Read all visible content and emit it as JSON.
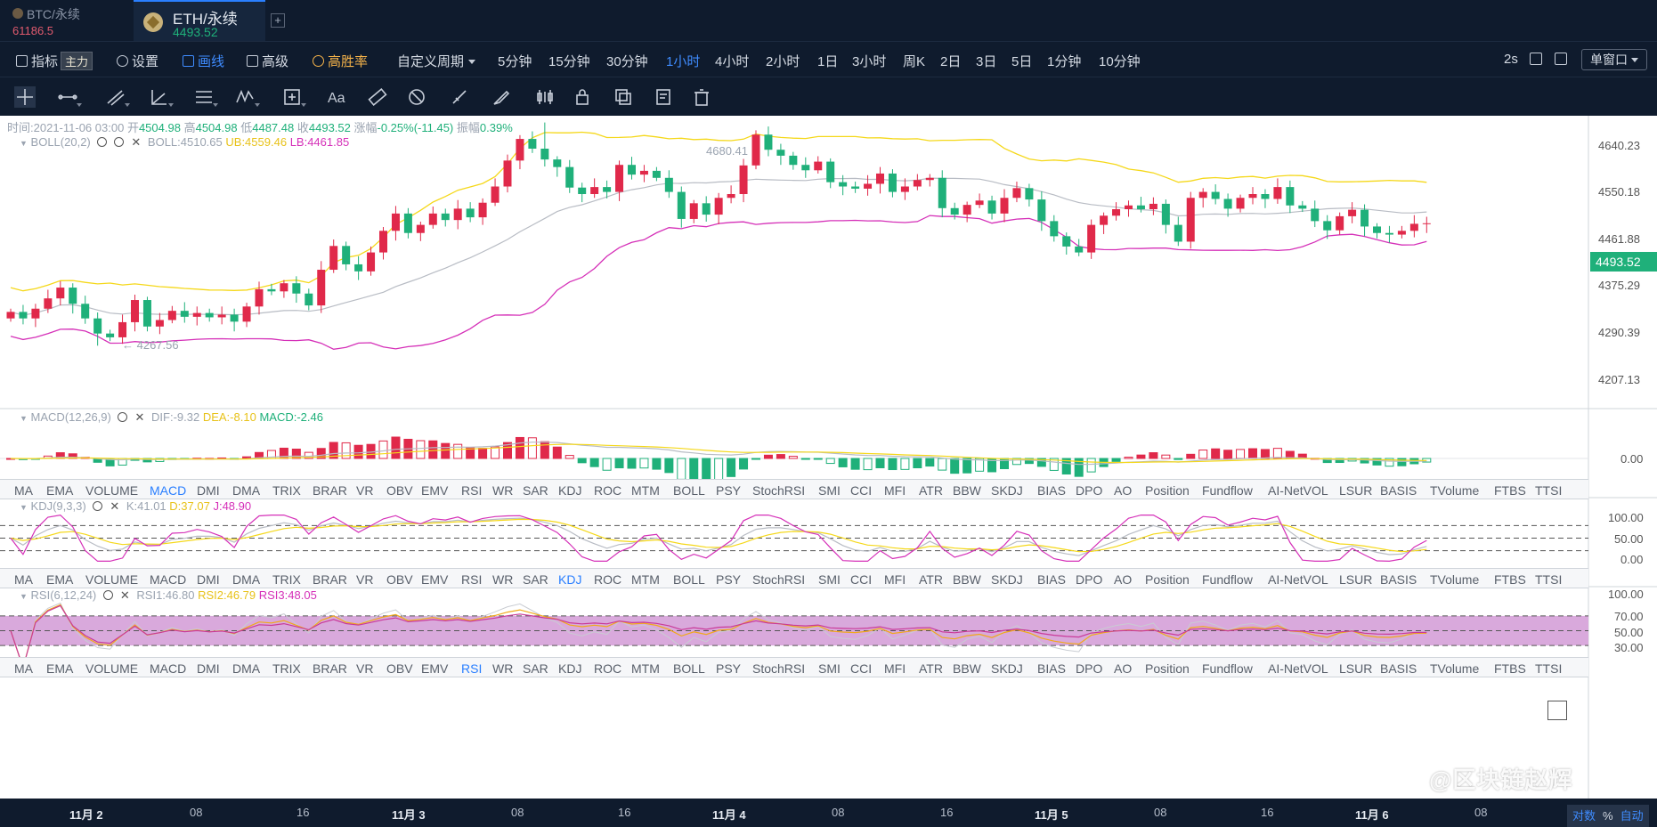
{
  "tabs": [
    {
      "name": "BTC/永续",
      "price": "61186.5"
    },
    {
      "name": "ETH/永续",
      "price": "4493.52"
    }
  ],
  "toolbar": {
    "indicator": "指标",
    "indicator_tag": "主力",
    "settings": "设置",
    "draw": "画线",
    "advanced": "高级",
    "winrate": "高胜率",
    "custom_period": "自定义周期",
    "periods": [
      "5分钟",
      "15分钟",
      "30分钟",
      "1小时",
      "4小时",
      "2小时",
      "1日",
      "3小时",
      "周K",
      "2日",
      "3日",
      "5日",
      "1分钟",
      "10分钟"
    ],
    "active_period": "1小时",
    "refresh": "2s",
    "window_mode": "单窗口"
  },
  "drawtools": [
    "crosshair-icon",
    "horizontal-line-icon",
    "ray-lines-icon",
    "angle-icon",
    "parallel-lines-icon",
    "wave-icon",
    "measure-box-icon",
    "text-icon",
    "ruler-icon",
    "fib-icon",
    "pen-icon",
    "brush-icon",
    "pattern-icon",
    "lock-icon",
    "copy-icon",
    "note-icon",
    "trash-icon"
  ],
  "ohlc": {
    "time_label": "时间:",
    "time": "2021-11-06 03:00",
    "open_label": "开",
    "open": "4504.98",
    "high_label": "高",
    "high": "4504.98",
    "low_label": "低",
    "low": "4487.48",
    "close_label": "收",
    "close": "4493.52",
    "change_label": "涨幅",
    "change": "-0.25%(-11.45)",
    "amp_label": "振幅",
    "amp": "0.39%"
  },
  "boll": {
    "name": "BOLL(20,2)",
    "boll": "BOLL:4510.65",
    "ub": "UB:4559.46",
    "lb": "LB:4461.85",
    "high_annot": "4680.41",
    "low_annot": "← 4267.56"
  },
  "macd": {
    "name": "MACD(12,26,9)",
    "dif": "DIF:-9.32",
    "dea": "DEA:-8.10",
    "macd": "MACD:-2.46",
    "axis": "0.00"
  },
  "kdj": {
    "name": "KDJ(9,3,3)",
    "k": "K:41.01",
    "d": "D:37.07",
    "j": "J:48.90",
    "axis": [
      "100.00",
      "50.00",
      "0.00"
    ]
  },
  "rsi": {
    "name": "RSI(6,12,24)",
    "rsi1": "RSI1:46.80",
    "rsi2": "RSI2:46.79",
    "rsi3": "RSI3:48.05",
    "axis": [
      "100.00",
      "70.00",
      "50.00",
      "30.00"
    ]
  },
  "price_axis": [
    "4640.23",
    "4550.18",
    "4461.88",
    "4375.29",
    "4290.39",
    "4207.13"
  ],
  "last_price": "4493.52",
  "indicator_tabs": [
    "MA",
    "EMA",
    "VOLUME",
    "MACD",
    "DMI",
    "DMA",
    "TRIX",
    "BRAR",
    "VR",
    "OBV",
    "EMV",
    "RSI",
    "WR",
    "SAR",
    "KDJ",
    "ROC",
    "MTM",
    "BOLL",
    "PSY",
    "StochRSI",
    "SMI",
    "CCI",
    "MFI",
    "ATR",
    "BBW",
    "SKDJ",
    "BIAS",
    "DPO",
    "AO",
    "Position",
    "Fundflow",
    "AI-NetVOL",
    "LSUR",
    "BASIS",
    "TVolume",
    "FTBS",
    "TTSI"
  ],
  "timeline": [
    "11月 2",
    "08",
    "16",
    "11月 3",
    "08",
    "16",
    "11月 4",
    "08",
    "16",
    "11月 5",
    "08",
    "16",
    "11月 6",
    "08"
  ],
  "corner": {
    "log": "对数",
    "pct": "%",
    "auto": "自动"
  },
  "watermark": "@区块链赵辉",
  "colors": {
    "up": "#e0294a",
    "down": "#1fb07a",
    "ub": "#f5d81a",
    "lb": "#d530b8",
    "mid": "#b8bcc4",
    "rsi_band": "#d9a9dc"
  },
  "chart_data": {
    "type": "candlestick",
    "interval": "1小时",
    "closes": [
      4330,
      4318,
      4336,
      4355,
      4375,
      4345,
      4318,
      4290,
      4283,
      4311,
      4352,
      4303,
      4315,
      4332,
      4321,
      4328,
      4320,
      4325,
      4312,
      4340,
      4372,
      4368,
      4383,
      4364,
      4342,
      4408,
      4452,
      4418,
      4405,
      4440,
      4480,
      4512,
      4476,
      4491,
      4512,
      4500,
      4521,
      4505,
      4532,
      4562,
      4610,
      4650,
      4632,
      4612,
      4598,
      4560,
      4548,
      4561,
      4552,
      4602,
      4584,
      4591,
      4578,
      4552,
      4502,
      4531,
      4510,
      4541,
      4548,
      4601,
      4658,
      4630,
      4619,
      4602,
      4592,
      4608,
      4570,
      4562,
      4558,
      4567,
      4586,
      4552,
      4562,
      4574,
      4578,
      4522,
      4510,
      4528,
      4536,
      4512,
      4541,
      4559,
      4538,
      4498,
      4470,
      4451,
      4440,
      4491,
      4508,
      4520,
      4527,
      4520,
      4530,
      4491,
      4460,
      4541,
      4552,
      4539,
      4521,
      4541,
      4548,
      4539,
      4561,
      4527,
      4521,
      4498,
      4481,
      4507,
      4519,
      4488,
      4476,
      4473,
      4480,
      4493,
      4494
    ]
  }
}
